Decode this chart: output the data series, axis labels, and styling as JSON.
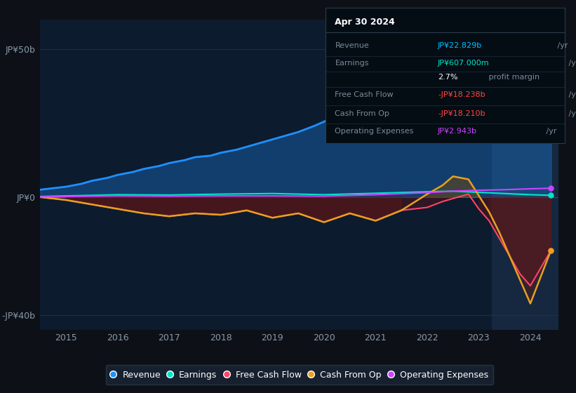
{
  "bg_color": "#0d1117",
  "plot_bg_color": "#0d1b2e",
  "title_box": {
    "date": "Apr 30 2024",
    "rows": [
      {
        "label": "Revenue",
        "value": "JP¥22.829b",
        "unit": " /yr",
        "value_color": "#00bfff"
      },
      {
        "label": "Earnings",
        "value": "JP¥607.000m",
        "unit": " /yr",
        "value_color": "#00e5cc"
      },
      {
        "label": "",
        "value": "2.7%",
        "unit": " profit margin",
        "value_color": "#ffffff"
      },
      {
        "label": "Free Cash Flow",
        "value": "-JP¥18.238b",
        "unit": " /yr",
        "value_color": "#ff4444"
      },
      {
        "label": "Cash From Op",
        "value": "-JP¥18.210b",
        "unit": " /yr",
        "value_color": "#ff4444"
      },
      {
        "label": "Operating Expenses",
        "value": "JP¥2.943b",
        "unit": " /yr",
        "value_color": "#cc44ff"
      }
    ]
  },
  "ylim": [
    -45,
    60
  ],
  "yticks": [
    -40,
    0,
    50
  ],
  "ytick_labels": [
    "-JP¥40b",
    "JP¥0",
    "JP¥50b"
  ],
  "xlim": [
    2014.5,
    2024.55
  ],
  "xticks": [
    2015,
    2016,
    2017,
    2018,
    2019,
    2020,
    2021,
    2022,
    2023,
    2024
  ],
  "grid_color": "#1e3050",
  "highlight_x_start": 2023.25,
  "highlight_x_end": 2024.55,
  "revenue_color": "#1e90ff",
  "earnings_color": "#00e5cc",
  "fcf_color": "#ff4466",
  "cashfromop_color": "#e8a020",
  "opex_color": "#cc44ff",
  "legend": [
    {
      "label": "Revenue",
      "color": "#1e90ff",
      "marker": "o"
    },
    {
      "label": "Earnings",
      "color": "#00e5cc",
      "marker": "o"
    },
    {
      "label": "Free Cash Flow",
      "color": "#ff4466",
      "marker": "o"
    },
    {
      "label": "Cash From Op",
      "color": "#e8a020",
      "marker": "o"
    },
    {
      "label": "Operating Expenses",
      "color": "#cc44ff",
      "marker": "o"
    }
  ],
  "revenue_x": [
    2014.5,
    2015.0,
    2015.3,
    2015.5,
    2015.8,
    2016.0,
    2016.3,
    2016.5,
    2016.8,
    2017.0,
    2017.3,
    2017.5,
    2017.8,
    2018.0,
    2018.3,
    2018.5,
    2018.8,
    2019.0,
    2019.3,
    2019.5,
    2019.8,
    2020.0,
    2020.3,
    2020.5,
    2020.8,
    2021.0,
    2021.2,
    2021.4,
    2021.6,
    2021.8,
    2022.0,
    2022.2,
    2022.4,
    2022.6,
    2022.8,
    2023.0,
    2023.2,
    2023.4,
    2023.6,
    2023.8,
    2024.0,
    2024.2,
    2024.4
  ],
  "revenue_y": [
    2.5,
    3.5,
    4.5,
    5.5,
    6.5,
    7.5,
    8.5,
    9.5,
    10.5,
    11.5,
    12.5,
    13.5,
    14.0,
    15.0,
    16.0,
    17.0,
    18.5,
    19.5,
    21.0,
    22.0,
    24.0,
    25.5,
    28.0,
    30.0,
    32.0,
    34.0,
    37.0,
    40.0,
    41.5,
    43.0,
    44.0,
    45.5,
    45.0,
    44.0,
    43.0,
    41.0,
    39.5,
    36.0,
    33.0,
    29.0,
    26.0,
    24.0,
    23.0
  ],
  "earnings_x": [
    2014.5,
    2015,
    2016,
    2017,
    2018,
    2019,
    2020,
    2021,
    2022,
    2022.5,
    2023,
    2023.5,
    2024,
    2024.4
  ],
  "earnings_y": [
    0.2,
    0.4,
    0.8,
    0.7,
    1.0,
    1.2,
    0.8,
    1.3,
    1.8,
    2.0,
    1.6,
    1.2,
    0.8,
    0.6
  ],
  "fcf_x": [
    2014.5,
    2015.0,
    2015.5,
    2016.0,
    2016.5,
    2017.0,
    2017.5,
    2018.0,
    2018.5,
    2019.0,
    2019.5,
    2020.0,
    2020.5,
    2021.0,
    2021.5,
    2022.0,
    2022.3,
    2022.5,
    2022.8,
    2023.0,
    2023.2,
    2023.4,
    2023.6,
    2023.8,
    2024.0,
    2024.2,
    2024.4
  ],
  "fcf_y": [
    0,
    -1,
    -2.5,
    -4.0,
    -5.5,
    -6.5,
    -5.5,
    -6.0,
    -4.5,
    -7.0,
    -5.5,
    -8.5,
    -5.5,
    -8.0,
    -4.5,
    -3.5,
    -1.5,
    -0.5,
    1.0,
    -4.0,
    -8.0,
    -14.0,
    -20.0,
    -26.0,
    -30.0,
    -24.0,
    -18.0
  ],
  "cashfromop_x": [
    2014.5,
    2015.0,
    2015.5,
    2016.0,
    2016.5,
    2017.0,
    2017.5,
    2018.0,
    2018.5,
    2019.0,
    2019.5,
    2020.0,
    2020.5,
    2021.0,
    2021.5,
    2022.0,
    2022.3,
    2022.5,
    2022.8,
    2023.0,
    2023.2,
    2023.4,
    2023.6,
    2023.8,
    2024.0,
    2024.2,
    2024.4
  ],
  "cashfromop_y": [
    0,
    -1,
    -2.5,
    -4.0,
    -5.5,
    -6.5,
    -5.5,
    -6.0,
    -4.5,
    -7.0,
    -5.5,
    -8.5,
    -5.5,
    -8.0,
    -4.5,
    1.0,
    4.0,
    7.0,
    6.0,
    0.5,
    -5.0,
    -12.0,
    -20.0,
    -28.0,
    -36.0,
    -27.0,
    -18.0
  ],
  "opex_x": [
    2014.5,
    2015,
    2016,
    2017,
    2018,
    2019,
    2020,
    2021,
    2022,
    2022.5,
    2023,
    2023.5,
    2024,
    2024.4
  ],
  "opex_y": [
    0.1,
    0.2,
    0.4,
    0.3,
    0.4,
    0.4,
    0.3,
    0.8,
    1.5,
    2.0,
    2.3,
    2.5,
    2.8,
    3.0
  ]
}
